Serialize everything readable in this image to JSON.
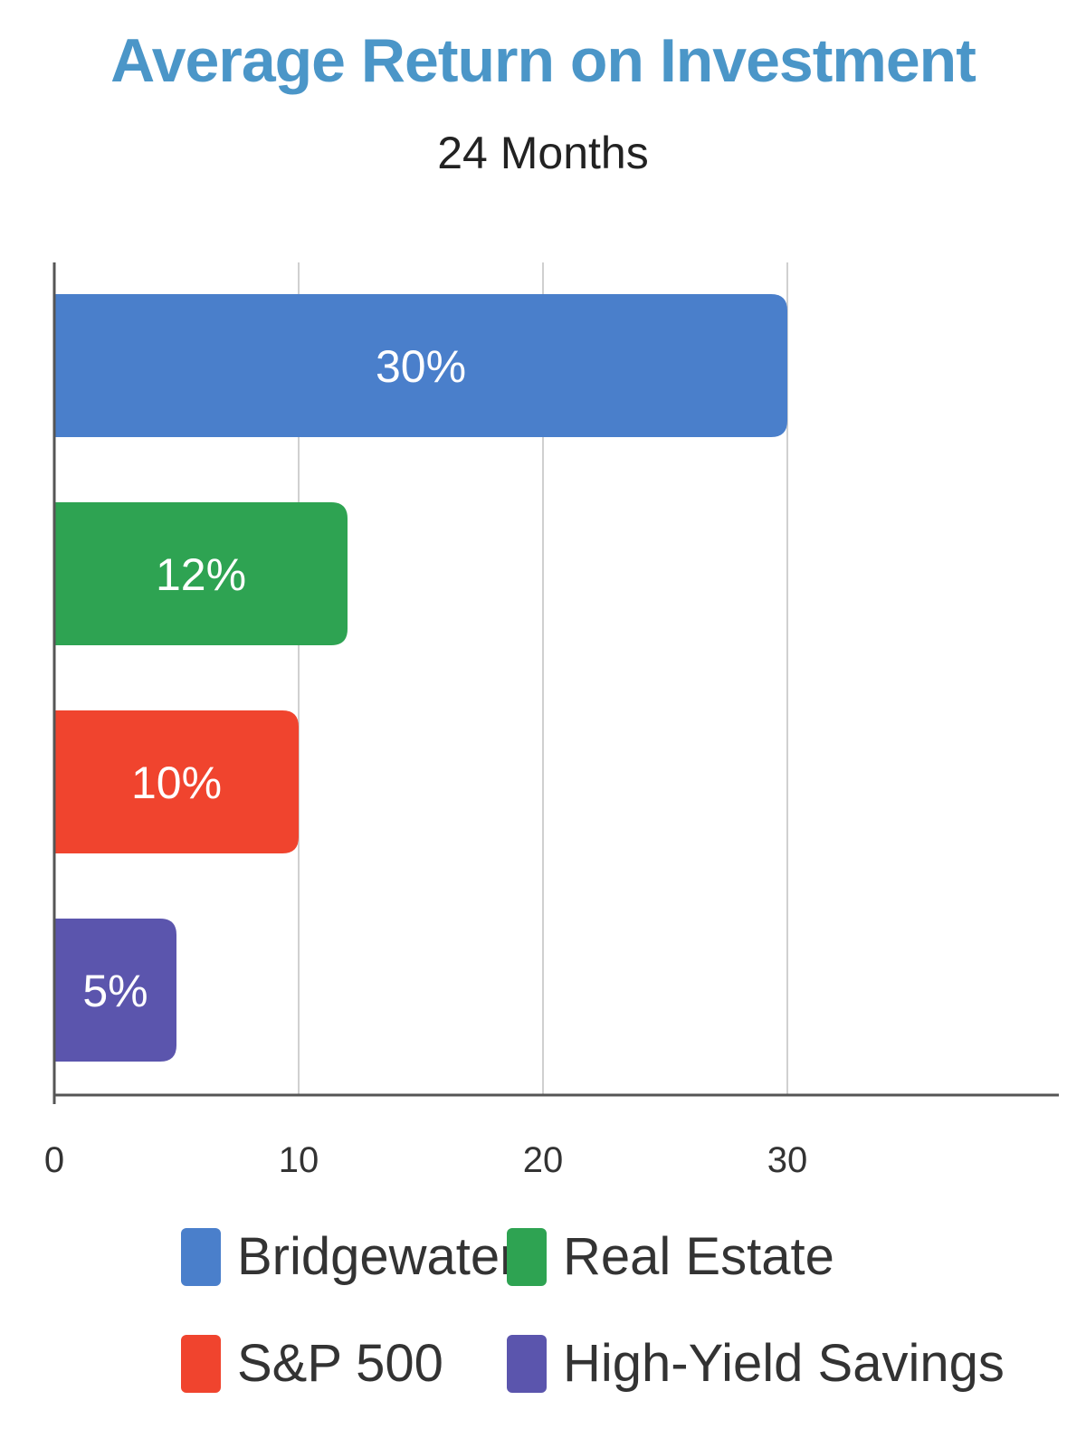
{
  "chart_data": {
    "type": "bar",
    "orientation": "horizontal",
    "title": "Average Return on Investment",
    "subtitle": "24 Months",
    "categories": [
      "Bridgewater",
      "Real Estate",
      "S&P 500",
      "High-Yield Savings"
    ],
    "values": [
      30,
      12,
      10,
      5
    ],
    "data_labels": [
      "30%",
      "12%",
      "10%",
      "5%"
    ],
    "colors": [
      "#4a7fcb",
      "#2ea352",
      "#f0442e",
      "#5b55ad"
    ],
    "xlim": [
      0,
      40
    ],
    "x_ticks": [
      0,
      10,
      20,
      30
    ],
    "grid": true,
    "legend_position": "bottom"
  },
  "colors": {
    "title": "#4b96c8",
    "axis": "#555555",
    "grid": "#d0d0d0"
  }
}
